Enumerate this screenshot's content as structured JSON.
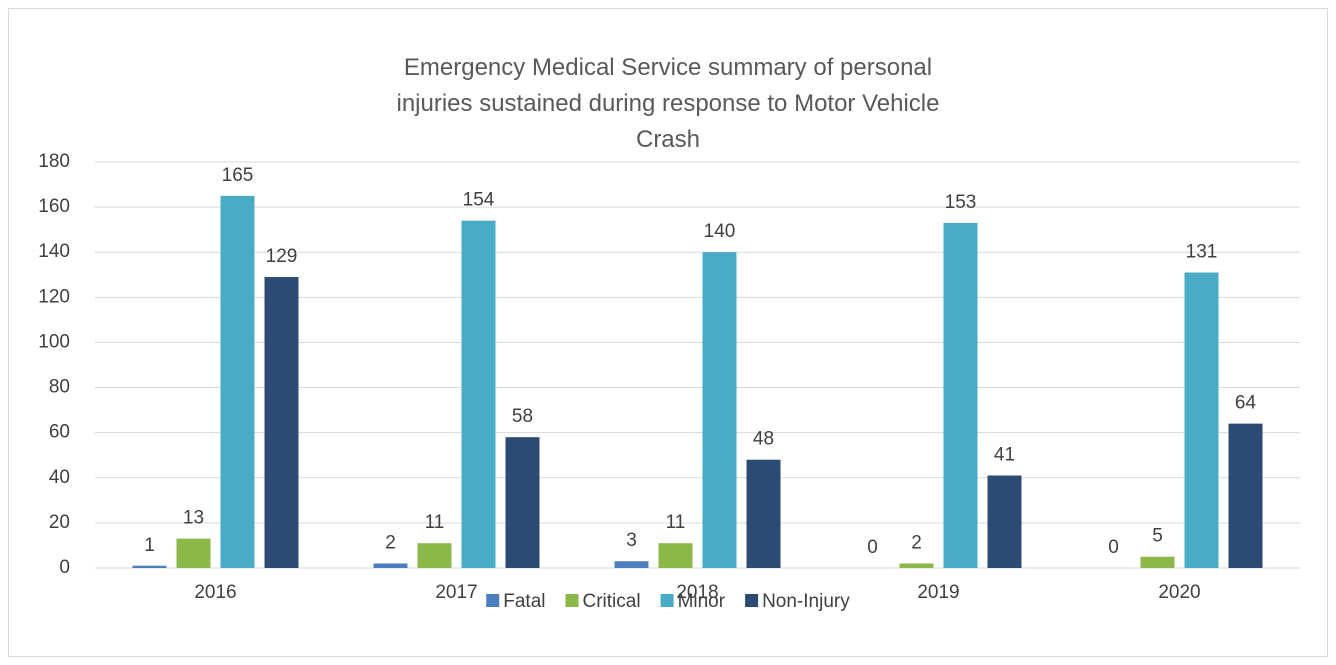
{
  "chart_data": {
    "type": "bar",
    "title": "Emergency Medical Service summary of personal injuries sustained during response to Motor Vehicle Crash",
    "categories": [
      "2016",
      "2017",
      "2018",
      "2019",
      "2020"
    ],
    "series": [
      {
        "name": "Fatal",
        "color": "#4a7ebf",
        "values": [
          1,
          2,
          3,
          0,
          0
        ]
      },
      {
        "name": "Critical",
        "color": "#8cb84a",
        "values": [
          13,
          11,
          11,
          2,
          5
        ]
      },
      {
        "name": "Minor",
        "color": "#4aabc6",
        "values": [
          165,
          154,
          140,
          153,
          131
        ]
      },
      {
        "name": "Non-Injury",
        "color": "#2c4b73",
        "values": [
          129,
          58,
          48,
          41,
          64
        ]
      }
    ],
    "ylim": [
      0,
      180
    ],
    "yticks": [
      0,
      20,
      40,
      60,
      80,
      100,
      120,
      140,
      160,
      180
    ],
    "grid": true,
    "legend": "bottom"
  }
}
